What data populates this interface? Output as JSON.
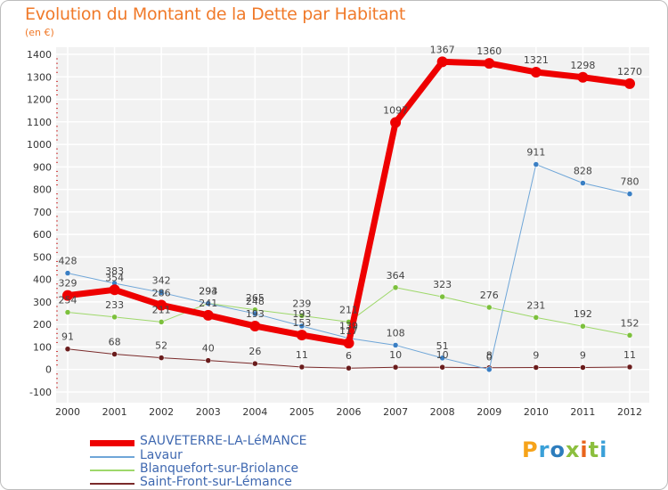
{
  "title": "Evolution du Montant de la Dette par Habitant",
  "subtitle": "(en €)",
  "logo": {
    "text": "Proxiti",
    "colors": [
      "#f6a31a",
      "#3aa0d8",
      "#2d7dbd",
      "#8cbf3e",
      "#e8641c",
      "#8cbf3e",
      "#3aa0d8"
    ]
  },
  "chart_data": {
    "type": "line",
    "x": [
      "2000",
      "2001",
      "2002",
      "2003",
      "2004",
      "2005",
      "2006",
      "2007",
      "2008",
      "2009",
      "2010",
      "2011",
      "2012"
    ],
    "ylim": [
      -100,
      1400
    ],
    "yticks": [
      "-100",
      "0",
      "100",
      "200",
      "300",
      "400",
      "500",
      "600",
      "700",
      "800",
      "900",
      "1000",
      "1100",
      "1200",
      "1300",
      "1400"
    ],
    "grid": true,
    "legend_position": "bottom-left",
    "series": [
      {
        "name": "Saint-Front-sur-Lémance",
        "color": "#7a2a2a",
        "marker": "#6a1c1c",
        "width": 1,
        "values": [
          91,
          68,
          52,
          40,
          26,
          11,
          6,
          10,
          10,
          8,
          9,
          9,
          11
        ],
        "labels": [
          "91",
          "68",
          "52",
          "40",
          "26",
          "11",
          "6",
          "10",
          "10",
          "8",
          "9",
          "9",
          "11"
        ]
      },
      {
        "name": "Blanquefort-sur-Briolance",
        "color": "#9ed86a",
        "marker": "#7cc03c",
        "width": 1,
        "values": [
          254,
          233,
          211,
          294,
          265,
          239,
          211,
          364,
          323,
          276,
          231,
          192,
          152
        ],
        "labels": [
          "254",
          "233",
          "211",
          "294",
          "265",
          "239",
          "211",
          "364",
          "323",
          "276",
          "231",
          "192",
          "152"
        ]
      },
      {
        "name": "Lavaur",
        "color": "#6fa6d8",
        "marker": "#3a7fc4",
        "width": 1,
        "values": [
          428,
          383,
          342,
          293,
          248,
          193,
          139,
          108,
          51,
          0,
          911,
          828,
          780
        ],
        "labels": [
          "428",
          "383",
          "342",
          "293",
          "248",
          "193",
          "139",
          "108",
          "51",
          "0",
          "911",
          "828",
          "780"
        ]
      },
      {
        "name": "SAUVETERRE-LA-LéMANCE",
        "color": "#ee0000",
        "marker": "#ee0000",
        "width": 7,
        "values": [
          329,
          354,
          286,
          241,
          193,
          153,
          117,
          1097,
          1367,
          1360,
          1321,
          1298,
          1270
        ],
        "labels": [
          "329",
          "354",
          "286",
          "241",
          "193",
          "153",
          "117",
          "1097",
          "1367",
          "1360",
          "1321",
          "1298",
          "1270"
        ]
      }
    ]
  },
  "legend": [
    {
      "label": "SAUVETERRE-LA-LéMANCE",
      "color": "#ee0000",
      "width": 7
    },
    {
      "label": "Lavaur",
      "color": "#6fa6d8",
      "width": 1
    },
    {
      "label": "Blanquefort-sur-Briolance",
      "color": "#9ed86a",
      "width": 1
    },
    {
      "label": "Saint-Front-sur-Lémance",
      "color": "#7a2a2a",
      "width": 1
    }
  ]
}
